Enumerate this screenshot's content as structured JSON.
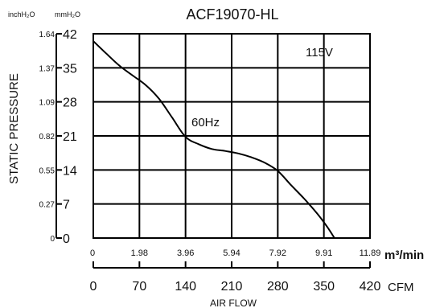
{
  "chart_data": {
    "type": "line",
    "title": "ACF19070-HL",
    "ylabel": "STATIC PRESSURE",
    "xlabel": "AIR FLOW",
    "y_units": {
      "left": "inchH₂O",
      "right": "mmH₂O"
    },
    "x_units": {
      "primary": "m³/min",
      "secondary": "CFM"
    },
    "y_ticks_mm": [
      "0",
      "7",
      "14",
      "21",
      "28",
      "35",
      "42"
    ],
    "y_ticks_inch": [
      "0",
      "0.27",
      "0.55",
      "0.82",
      "1.09",
      "1.37",
      "1.64"
    ],
    "x_ticks_m3": [
      "0",
      "1.98",
      "3.96",
      "5.94",
      "7.92",
      "9.91",
      "11.89"
    ],
    "x_ticks_cfm": [
      "0",
      "70",
      "140",
      "210",
      "280",
      "350",
      "420"
    ],
    "xlim_cfm": [
      0,
      420
    ],
    "ylim_mm": [
      0,
      42
    ],
    "grid": true,
    "annotations": [
      "115V",
      "60Hz"
    ],
    "series": [
      {
        "x_cfm": [
          0,
          20,
          40,
          60,
          80,
          100,
          120,
          140,
          160,
          180,
          200,
          220,
          240,
          260,
          280,
          300,
          320,
          340,
          355,
          366
        ],
        "y_mm": [
          40.5,
          37.9,
          35.4,
          33.4,
          31.4,
          28.6,
          24.7,
          20.8,
          19.3,
          18.3,
          17.9,
          17.4,
          16.6,
          15.5,
          13.8,
          10.9,
          8.1,
          5.0,
          2.3,
          0
        ]
      }
    ]
  }
}
